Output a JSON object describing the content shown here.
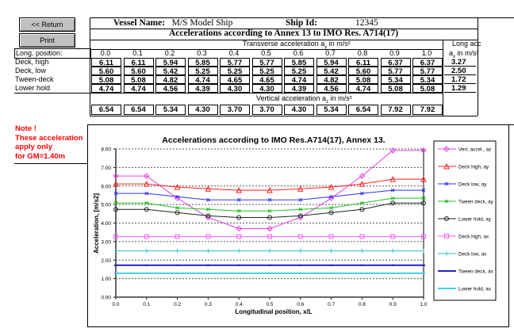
{
  "buttons": {
    "return": "<< Return",
    "print": "Print"
  },
  "header": {
    "vessel_label": "Vessel Name:",
    "vessel_name": "M/S Model Ship",
    "ship_id_label": "Ship Id:",
    "ship_id": "12345",
    "title": "Accelerations according to Annex 13 to IMO Res. A714(17)"
  },
  "table": {
    "transverse_label": "Transverse acceleration a",
    "transverse_sub": "y",
    "unit": " in m/s²",
    "long_label": "Long acc",
    "long_unit_prefix": "a",
    "long_unit_sub": "x",
    "position_label": "Long. position:",
    "positions": [
      "0.0",
      "0.1",
      "0.2",
      "0.3",
      "0.4",
      "0.5",
      "0.6",
      "0.7",
      "0.8",
      "0.9",
      "1.0"
    ],
    "rows": [
      {
        "label": "Deck, high",
        "values": [
          "6.11",
          "6.11",
          "5.94",
          "5.85",
          "5.77",
          "5.77",
          "5.85",
          "5.94",
          "6.11",
          "6.37",
          "6.37"
        ],
        "long": "3.27"
      },
      {
        "label": "Deck, low",
        "values": [
          "5.60",
          "5.60",
          "5.42",
          "5.25",
          "5.25",
          "5.25",
          "5.25",
          "5.42",
          "5.60",
          "5.77",
          "5.77"
        ],
        "long": "2.50"
      },
      {
        "label": "Tween-deck",
        "values": [
          "5.08",
          "5.08",
          "4.82",
          "4.74",
          "4.65",
          "4.65",
          "4.74",
          "4.82",
          "5.08",
          "5.34",
          "5.34"
        ],
        "long": "1.72"
      },
      {
        "label": "Lower hold",
        "values": [
          "4.74",
          "4.74",
          "4.56",
          "4.39",
          "4.30",
          "4.30",
          "4.39",
          "4.56",
          "4.74",
          "5.08",
          "5.08"
        ],
        "long": "1.29"
      }
    ],
    "vertical_label": "Vertical acceleration a",
    "vertical_sub": "z",
    "vertical_values": [
      "6.54",
      "6.54",
      "5.34",
      "4.30",
      "3.70",
      "3.70",
      "4.30",
      "5.34",
      "6.54",
      "7.92",
      "7.92"
    ]
  },
  "note": [
    "Note !",
    "These acceleration",
    "apply only",
    "for GM=1.40m"
  ],
  "chart_data": {
    "type": "line",
    "title": "Accelerations according to IMO Res.A714(17), Annex 13.",
    "xlabel": "Longitudinal position,  x/L",
    "ylabel": "Acceleration, [m/s2]",
    "x": [
      0.0,
      0.1,
      0.2,
      0.3,
      0.4,
      0.5,
      0.6,
      0.7,
      0.8,
      0.9,
      1.0
    ],
    "xticks": [
      "0.0",
      "0.1",
      "0.2",
      "0.3",
      "0.4",
      "0.5",
      "0.6",
      "0.7",
      "0.8",
      "0.9",
      "1.0"
    ],
    "yticks": [
      "0.00",
      "1.00",
      "2.00",
      "3.00",
      "4.00",
      "5.00",
      "6.00",
      "7.00",
      "8.00"
    ],
    "ylim": [
      0,
      8
    ],
    "grid": "horizontal dotted",
    "legend_position": "right",
    "series": [
      {
        "name": "Vert. accel., az",
        "color": "#e040e0",
        "marker": "diamond",
        "values": [
          6.54,
          6.54,
          5.34,
          4.3,
          3.7,
          3.7,
          4.3,
          5.34,
          6.54,
          7.92,
          7.92
        ]
      },
      {
        "name": "Deck high, ay",
        "color": "#ff2020",
        "marker": "triangle",
        "values": [
          6.11,
          6.11,
          5.94,
          5.85,
          5.77,
          5.77,
          5.85,
          5.94,
          6.11,
          6.37,
          6.37
        ]
      },
      {
        "name": "Deck low, ay",
        "color": "#3030ff",
        "marker": "x",
        "values": [
          5.6,
          5.6,
          5.42,
          5.25,
          5.25,
          5.25,
          5.25,
          5.42,
          5.6,
          5.77,
          5.77
        ]
      },
      {
        "name": "Tween deck, ay",
        "color": "#20c020",
        "marker": "star",
        "values": [
          5.08,
          5.08,
          4.82,
          4.74,
          4.65,
          4.65,
          4.74,
          4.82,
          5.08,
          5.34,
          5.34
        ]
      },
      {
        "name": "Lower hold, ay",
        "color": "#202020",
        "marker": "circle",
        "values": [
          4.74,
          4.74,
          4.56,
          4.39,
          4.3,
          4.3,
          4.39,
          4.56,
          4.74,
          5.08,
          5.08
        ]
      },
      {
        "name": "Deck high, ax",
        "color": "#f060f0",
        "marker": "square",
        "values": [
          3.27,
          3.27,
          3.27,
          3.27,
          3.27,
          3.27,
          3.27,
          3.27,
          3.27,
          3.27,
          3.27
        ]
      },
      {
        "name": "Deck low, ax",
        "color": "#20c0c0",
        "marker": "plus",
        "values": [
          2.5,
          2.5,
          2.5,
          2.5,
          2.5,
          2.5,
          2.5,
          2.5,
          2.5,
          2.5,
          2.5
        ]
      },
      {
        "name": "Tween deck, ax",
        "color": "#2020d0",
        "marker": "dash",
        "values": [
          1.72,
          1.72,
          1.72,
          1.72,
          1.72,
          1.72,
          1.72,
          1.72,
          1.72,
          1.72,
          1.72
        ]
      },
      {
        "name": "Lower hold, ax",
        "color": "#40d0f0",
        "marker": "dash",
        "values": [
          1.29,
          1.29,
          1.29,
          1.29,
          1.29,
          1.29,
          1.29,
          1.29,
          1.29,
          1.29,
          1.29
        ]
      }
    ]
  }
}
